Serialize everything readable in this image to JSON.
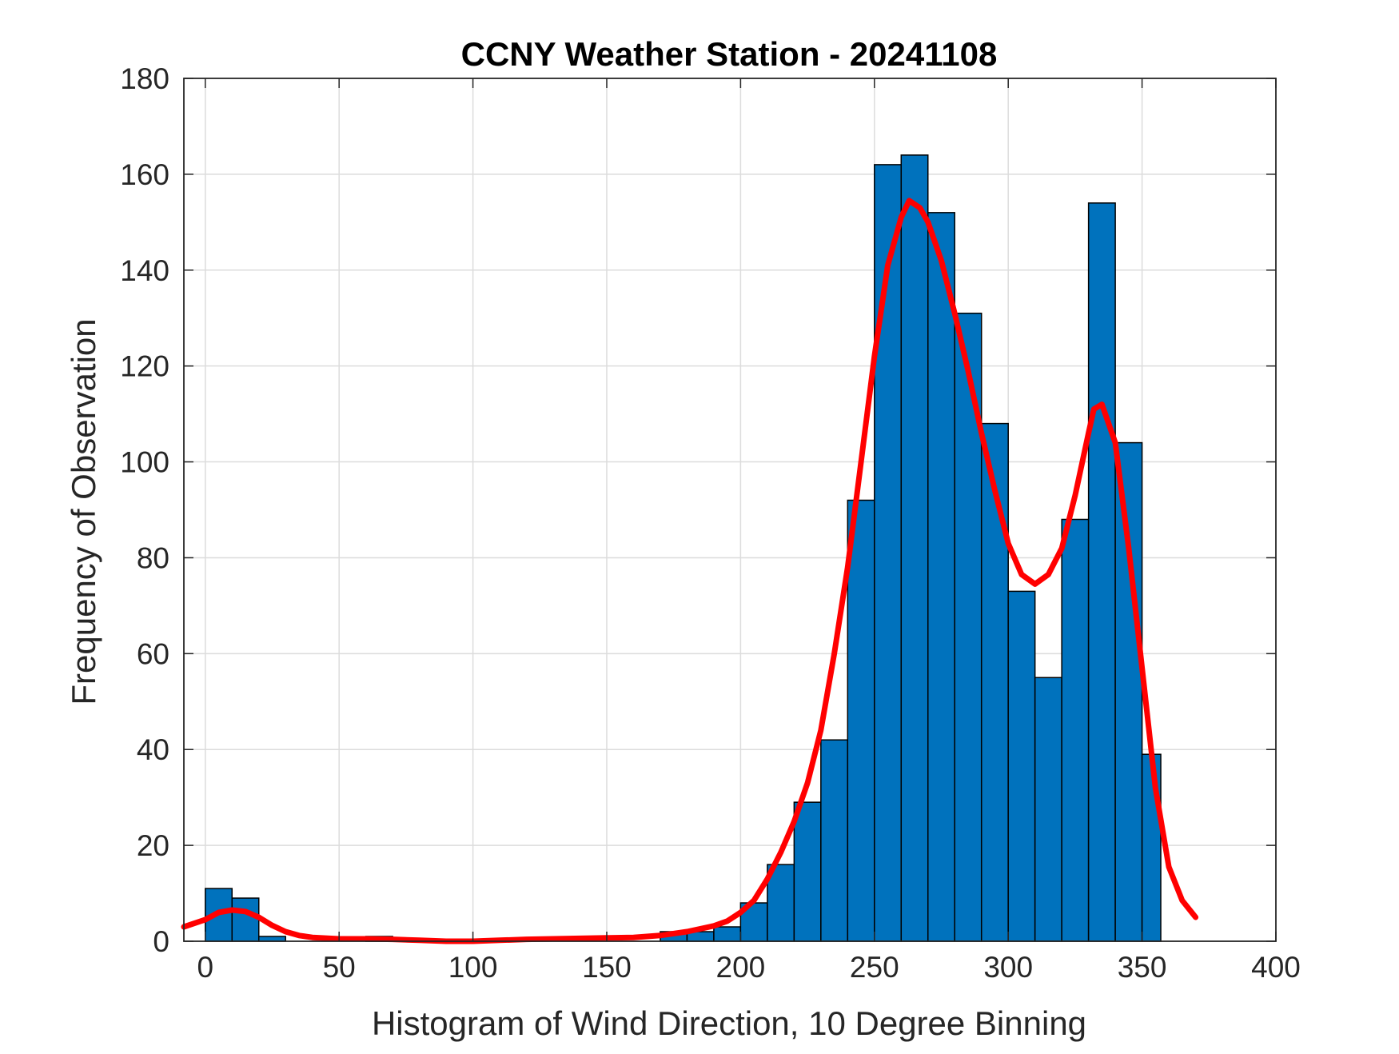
{
  "chart_data": {
    "type": "bar",
    "title": "CCNY Weather Station - 20241108",
    "xlabel": "Histogram of Wind Direction, 10 Degree Binning",
    "ylabel": "Frequency of Observation",
    "xlim": [
      -8,
      400
    ],
    "ylim": [
      0,
      180
    ],
    "grid": true,
    "legend": "none",
    "x_ticks": [
      0,
      50,
      100,
      150,
      200,
      250,
      300,
      350,
      400
    ],
    "y_ticks": [
      0,
      20,
      40,
      60,
      80,
      100,
      120,
      140,
      160,
      180
    ],
    "bin_edges": [
      0,
      10,
      20,
      30,
      40,
      50,
      60,
      70,
      80,
      90,
      100,
      110,
      120,
      130,
      140,
      150,
      160,
      170,
      180,
      190,
      200,
      210,
      220,
      230,
      240,
      250,
      260,
      270,
      280,
      290,
      300,
      310,
      320,
      330,
      340,
      350,
      357
    ],
    "values": [
      11,
      9,
      1,
      0,
      0,
      0,
      1,
      0,
      0,
      0,
      0,
      0,
      0,
      0,
      0,
      0,
      0,
      2,
      2,
      3,
      8,
      16,
      29,
      42,
      92,
      162,
      164,
      152,
      131,
      108,
      73,
      55,
      88,
      154,
      104,
      39
    ],
    "bar_color": "#0072BD",
    "fit_curve": {
      "color": "#FF0000",
      "x": [
        -8,
        0,
        5,
        10,
        15,
        20,
        25,
        30,
        35,
        40,
        50,
        60,
        70,
        80,
        90,
        100,
        110,
        120,
        130,
        140,
        150,
        160,
        170,
        180,
        185,
        190,
        195,
        200,
        205,
        210,
        215,
        220,
        225,
        230,
        235,
        240,
        245,
        250,
        255,
        260,
        263,
        267,
        270,
        275,
        280,
        285,
        290,
        295,
        300,
        305,
        310,
        315,
        320,
        325,
        330,
        332,
        335,
        340,
        345,
        350,
        355,
        360,
        365,
        370
      ],
      "y": [
        3,
        4.5,
        6,
        6.5,
        6.2,
        5,
        3.3,
        2,
        1.2,
        0.8,
        0.5,
        0.5,
        0.4,
        0.2,
        0,
        0,
        0.2,
        0.4,
        0.5,
        0.6,
        0.7,
        0.8,
        1.2,
        2,
        2.6,
        3.2,
        4.2,
        6,
        8.5,
        13,
        18.5,
        25,
        33,
        44,
        60,
        78,
        100,
        122,
        141,
        151,
        154.5,
        153,
        150,
        142,
        131,
        119,
        106,
        94,
        83,
        76.5,
        74.5,
        76.5,
        82,
        93,
        106,
        111,
        112,
        104,
        82,
        57,
        32,
        15.5,
        8.5,
        5
      ]
    }
  }
}
